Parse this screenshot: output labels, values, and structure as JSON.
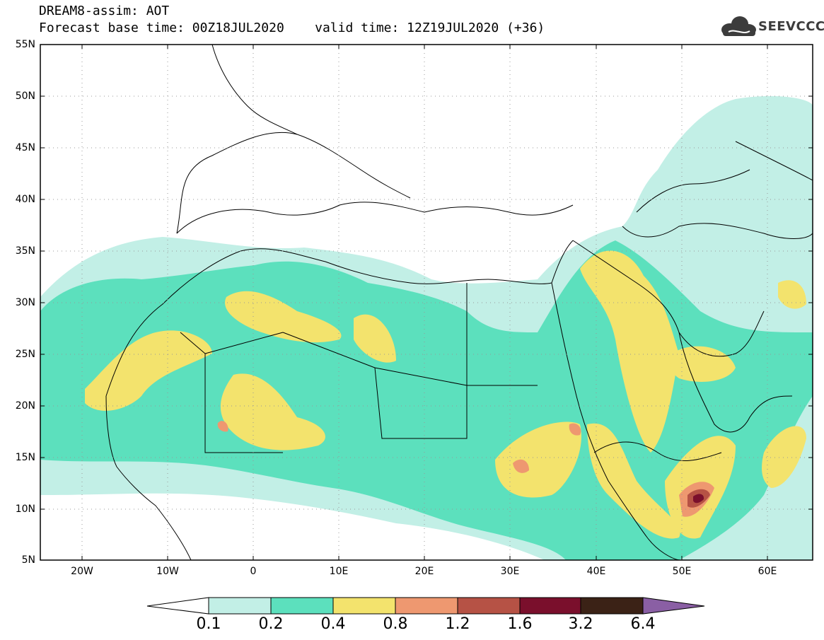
{
  "header": {
    "line1": "DREAM8-assim: AOT",
    "line2": "Forecast base time: 00Z18JUL2020    valid time: 12Z19JUL2020 (+36)"
  },
  "logo": {
    "text": "SEEVCCC",
    "icon": "cloud-icon"
  },
  "map": {
    "lat_ticks": [
      "55N",
      "50N",
      "45N",
      "40N",
      "35N",
      "30N",
      "25N",
      "20N",
      "15N",
      "10N",
      "5N"
    ],
    "lon_ticks": [
      "20W",
      "10W",
      "0",
      "10E",
      "20E",
      "30E",
      "40E",
      "50E",
      "60E"
    ],
    "grid": "dotted"
  },
  "colorbar": {
    "labels": [
      "0.1",
      "0.2",
      "0.4",
      "0.8",
      "1.2",
      "1.6",
      "3.2",
      "6.4"
    ],
    "colors": [
      "#ffffff",
      "#c2efe6",
      "#5ce0bd",
      "#f3e36d",
      "#ee9870",
      "#b65245",
      "#7a0f2c",
      "#3b2216",
      "#8a5fa4"
    ]
  },
  "chart_data": {
    "type": "heatmap",
    "title": "DREAM8-assim: AOT",
    "subtitle": "Forecast base time: 00Z18JUL2020    valid time: 12Z19JUL2020 (+36)",
    "x_range": [
      -25,
      65
    ],
    "y_range": [
      5,
      55
    ],
    "levels": [
      0.1,
      0.2,
      0.4,
      0.8,
      1.2,
      1.6,
      3.2,
      6.4
    ]
  }
}
